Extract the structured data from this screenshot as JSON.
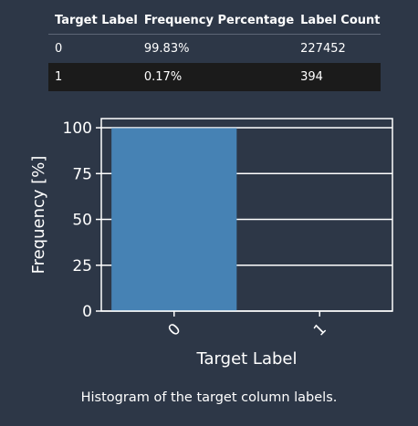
{
  "table": {
    "headers": [
      "Target Label",
      "Frequency Percentage",
      "Label Count"
    ],
    "rows": [
      [
        "0",
        "99.83%",
        "227452"
      ],
      [
        "1",
        "0.17%",
        "394"
      ]
    ]
  },
  "chart_data": {
    "type": "bar",
    "categories": [
      "0",
      "1"
    ],
    "values": [
      99.83,
      0.17
    ],
    "xlabel": "Target Label",
    "ylabel": "Frequency [%]",
    "ylim": [
      0,
      105
    ],
    "yticks": [
      0,
      25,
      50,
      75,
      100
    ],
    "grid": true,
    "colors": {
      "bar": "#4682b4",
      "axes": "#ffffff",
      "background": "#2d3747"
    }
  },
  "caption": "Histogram of the target column labels."
}
